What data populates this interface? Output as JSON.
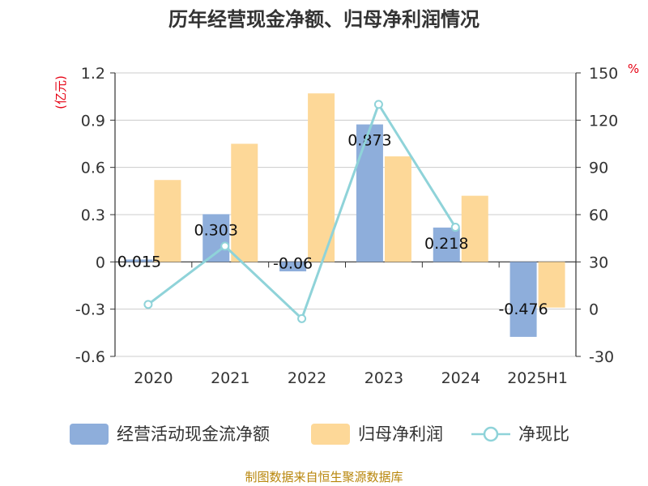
{
  "chart_data": {
    "type": "bar",
    "title": "历年经营现金净额、归母净利润情况",
    "categories": [
      "2020",
      "2021",
      "2022",
      "2023",
      "2024",
      "2025H1"
    ],
    "series": [
      {
        "name": "经营活动现金流净额",
        "kind": "bar",
        "axis": "left",
        "color": "#8eaedb",
        "values": [
          0.015,
          0.303,
          -0.06,
          0.873,
          0.218,
          -0.476
        ],
        "labels": [
          "0.015",
          "0.303",
          "-0.06",
          "0.873",
          "0.218",
          "-0.476"
        ]
      },
      {
        "name": "归母净利润",
        "kind": "bar",
        "axis": "left",
        "color": "#fdd898",
        "values": [
          0.52,
          0.75,
          1.07,
          0.67,
          0.42,
          -0.29
        ]
      },
      {
        "name": "净现比",
        "kind": "line",
        "axis": "right",
        "color": "#8fd3d9",
        "values": [
          3,
          40,
          -6,
          130,
          52,
          null
        ]
      }
    ],
    "y_left": {
      "unit": "(亿元)",
      "range": [
        -0.6,
        1.2
      ],
      "ticks": [
        "-0.6",
        "-0.3",
        "0",
        "0.3",
        "0.6",
        "0.9",
        "1.2"
      ]
    },
    "y_right": {
      "unit": "%",
      "range": [
        -30,
        150
      ],
      "ticks": [
        "-30",
        "0",
        "30",
        "60",
        "90",
        "120",
        "150"
      ]
    },
    "grid": true,
    "legend_position": "bottom"
  },
  "source": "制图数据来自恒生聚源数据库"
}
